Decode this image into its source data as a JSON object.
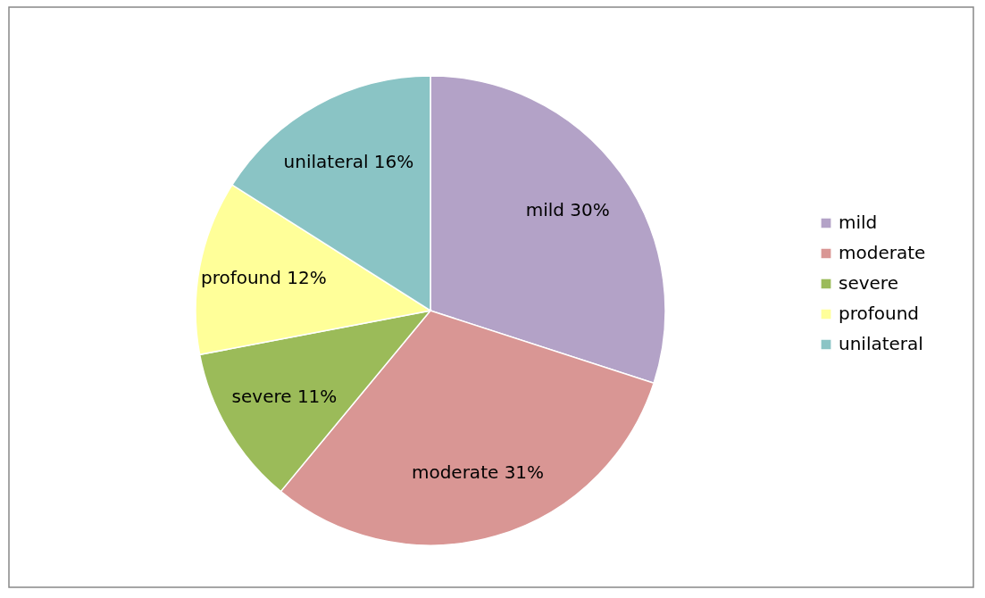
{
  "chart_data": {
    "type": "pie",
    "categories": [
      "mild",
      "moderate",
      "severe",
      "profound",
      "unilateral"
    ],
    "values": [
      30,
      31,
      11,
      12,
      16
    ],
    "colors": [
      "#b3a2c7",
      "#d99694",
      "#9bbb59",
      "#ffff99",
      "#8ac4c5"
    ],
    "value_labels": [
      "mild 30%",
      "moderate 31%",
      "severe 11%",
      "profound 12%",
      "unilateral 16%"
    ],
    "legend": "right"
  }
}
